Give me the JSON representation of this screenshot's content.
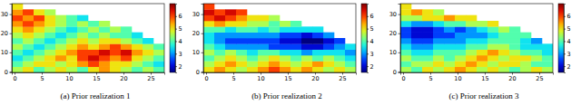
{
  "chart_data": [
    {
      "type": "heatmap",
      "title": "(a) Prior realization 1",
      "xlim": [
        -0.5,
        27.5
      ],
      "ylim": [
        -0.5,
        35.5
      ],
      "xticks": [
        0,
        5,
        10,
        15,
        20,
        25
      ],
      "yticks": [
        0,
        10,
        20,
        30
      ],
      "x_edges": [
        -0.5,
        1.5,
        3.5,
        5.5,
        7.5,
        9.5,
        11.5,
        13.5,
        15.5,
        17.5,
        19.5,
        21.5,
        23.5,
        25.5,
        27.5
      ],
      "y_edges": [
        -0.5,
        2.5,
        5.5,
        8.5,
        11.5,
        14.5,
        17.5,
        20.5,
        23.5,
        26.5,
        29.5,
        32.5,
        35.5
      ],
      "cells": [
        [
          4.5,
          5,
          4,
          4.5,
          5,
          4.5,
          4,
          5,
          5.5,
          5,
          4.5,
          4,
          4.5,
          4
        ],
        [
          4,
          4.5,
          5,
          5,
          4.5,
          5,
          5.5,
          6,
          5.5,
          5,
          5,
          4.5,
          4,
          3.5
        ],
        [
          3.5,
          4,
          4.5,
          5,
          5.5,
          5,
          6,
          6.5,
          6,
          5.5,
          6,
          5,
          4.5,
          4
        ],
        [
          4,
          3.5,
          4,
          4.5,
          5,
          5.5,
          6,
          6,
          6.5,
          6,
          6.5,
          5.5,
          5,
          4.5
        ],
        [
          4.5,
          4,
          3.5,
          4,
          4.5,
          5,
          5.5,
          5,
          5.5,
          6,
          5.5,
          5,
          4.5,
          4
        ],
        [
          4,
          4.5,
          4,
          3.5,
          4,
          4.5,
          5,
          4.5,
          5,
          5,
          4.5,
          4,
          3.5,
          null
        ],
        [
          4.5,
          5,
          4.5,
          4,
          3.5,
          4,
          4.5,
          4,
          4.5,
          4,
          4,
          3.5,
          null,
          null
        ],
        [
          5,
          5.5,
          5,
          4.5,
          4,
          3.5,
          4,
          4.5,
          4,
          4.5,
          4,
          null,
          null,
          null
        ],
        [
          5.5,
          6,
          5.5,
          5,
          4.5,
          4,
          4.5,
          4,
          4.5,
          null,
          null,
          null,
          null,
          null
        ],
        [
          6,
          5.5,
          6,
          5,
          4.5,
          4,
          3.5,
          null,
          null,
          null,
          null,
          null,
          null,
          null
        ],
        [
          5.5,
          6,
          5,
          4.5,
          null,
          null,
          null,
          null,
          null,
          null,
          null,
          null,
          null,
          null
        ],
        [
          5,
          null,
          null,
          null,
          null,
          null,
          null,
          null,
          null,
          null,
          null,
          null,
          null,
          null
        ]
      ],
      "zlim": [
        1.5,
        7
      ],
      "zticks": [
        2,
        3,
        4,
        5,
        6
      ]
    },
    {
      "type": "heatmap",
      "title": "(b) Prior realization 2",
      "xlim": [
        -0.5,
        27.5
      ],
      "ylim": [
        -0.5,
        35.5
      ],
      "xticks": [
        0,
        5,
        10,
        15,
        20,
        25
      ],
      "yticks": [
        0,
        10,
        20,
        30
      ],
      "x_edges": [
        -0.5,
        1.5,
        3.5,
        5.5,
        7.5,
        9.5,
        11.5,
        13.5,
        15.5,
        17.5,
        19.5,
        21.5,
        23.5,
        25.5,
        27.5
      ],
      "y_edges": [
        -0.5,
        2.5,
        5.5,
        8.5,
        11.5,
        14.5,
        17.5,
        20.5,
        23.5,
        26.5,
        29.5,
        32.5,
        35.5
      ],
      "cells": [
        [
          5,
          5.5,
          5,
          4.5,
          5,
          5.5,
          6,
          5.5,
          5,
          5.5,
          5,
          4.5,
          5,
          4.5
        ],
        [
          4.5,
          5,
          5.5,
          5,
          4.5,
          5,
          5.5,
          5,
          4.5,
          5,
          5.5,
          5,
          4.5,
          4
        ],
        [
          4,
          4.5,
          5,
          4.5,
          4,
          4.5,
          5,
          4.5,
          4,
          4.5,
          4,
          4.5,
          4,
          3.5
        ],
        [
          4.5,
          4,
          4.5,
          4,
          3.5,
          4,
          4,
          3.5,
          3.5,
          3,
          3.5,
          3.5,
          3.5,
          3
        ],
        [
          4,
          3.5,
          3,
          3,
          3,
          3,
          2.5,
          2.5,
          2.5,
          2,
          2,
          2.5,
          3,
          3.5
        ],
        [
          3.5,
          3,
          2.5,
          2.5,
          2.5,
          2.5,
          2.5,
          2,
          2,
          1.5,
          1.5,
          2,
          2.5,
          null
        ],
        [
          3.5,
          3,
          3,
          3,
          3,
          3,
          3,
          2.5,
          2.5,
          2,
          2.5,
          3,
          null,
          null
        ],
        [
          4,
          4,
          3.5,
          4,
          4,
          3.5,
          4,
          3.5,
          3.5,
          3.5,
          3.5,
          null,
          null,
          null
        ],
        [
          5,
          5.5,
          5,
          5,
          4.5,
          4.5,
          4,
          4.5,
          4,
          null,
          null,
          null,
          null,
          null
        ],
        [
          6,
          6.5,
          6,
          5.5,
          5,
          5,
          4.5,
          null,
          null,
          null,
          null,
          null,
          null,
          null
        ],
        [
          6.5,
          6,
          6.5,
          6,
          null,
          null,
          null,
          null,
          null,
          null,
          null,
          null,
          null,
          null
        ],
        [
          6,
          null,
          null,
          null,
          null,
          null,
          null,
          null,
          null,
          null,
          null,
          null,
          null,
          null
        ]
      ],
      "zlim": [
        1.5,
        7
      ],
      "zticks": [
        2,
        3,
        4,
        5,
        6
      ]
    },
    {
      "type": "heatmap",
      "title": "(c) Prior realization 3",
      "xlim": [
        -0.5,
        27.5
      ],
      "ylim": [
        -0.5,
        35.5
      ],
      "xticks": [
        0,
        5,
        10,
        15,
        20,
        25
      ],
      "yticks": [
        0,
        10,
        20,
        30
      ],
      "x_edges": [
        -0.5,
        1.5,
        3.5,
        5.5,
        7.5,
        9.5,
        11.5,
        13.5,
        15.5,
        17.5,
        19.5,
        21.5,
        23.5,
        25.5,
        27.5
      ],
      "y_edges": [
        -0.5,
        2.5,
        5.5,
        8.5,
        11.5,
        14.5,
        17.5,
        20.5,
        23.5,
        26.5,
        29.5,
        32.5,
        35.5
      ],
      "cells": [
        [
          4.5,
          4,
          5,
          4.5,
          5,
          5.5,
          5,
          4.5,
          5,
          4.5,
          4,
          4.5,
          5,
          4.5
        ],
        [
          4,
          4.5,
          4.5,
          5,
          4.5,
          5,
          5.5,
          5,
          4.5,
          5,
          5,
          4.5,
          4,
          4
        ],
        [
          4.5,
          4,
          4,
          4.5,
          4,
          4.5,
          5,
          5.5,
          5,
          4.5,
          5,
          5,
          4.5,
          4
        ],
        [
          4,
          3.5,
          3.5,
          4,
          4,
          4,
          4.5,
          5,
          5.5,
          5,
          4.5,
          4,
          4,
          3.5
        ],
        [
          3.5,
          3,
          3,
          3.5,
          3.5,
          3.5,
          4,
          4,
          4.5,
          4.5,
          4,
          3.5,
          3.5,
          3.5
        ],
        [
          3,
          2.5,
          2.5,
          3,
          3,
          3,
          3.5,
          3.5,
          4,
          4,
          4,
          3.5,
          3,
          null
        ],
        [
          2.5,
          2,
          2,
          2.5,
          2.5,
          3,
          3,
          3,
          3.5,
          4,
          4,
          4,
          null,
          null
        ],
        [
          2.5,
          2,
          2,
          2.5,
          3,
          2.5,
          3,
          3.5,
          4,
          4.5,
          4,
          null,
          null,
          null
        ],
        [
          3.5,
          3,
          3,
          3.5,
          4,
          4,
          4.5,
          4.5,
          5,
          null,
          null,
          null,
          null,
          null
        ],
        [
          4.5,
          4.5,
          5,
          5,
          5.5,
          5,
          5,
          null,
          null,
          null,
          null,
          null,
          null,
          null
        ],
        [
          5,
          5.5,
          5,
          4.5,
          null,
          null,
          null,
          null,
          null,
          null,
          null,
          null,
          null,
          null
        ],
        [
          5,
          null,
          null,
          null,
          null,
          null,
          null,
          null,
          null,
          null,
          null,
          null,
          null,
          null
        ]
      ],
      "zlim": [
        1.5,
        7
      ],
      "zticks": [
        2,
        3,
        4,
        5,
        6
      ]
    }
  ]
}
